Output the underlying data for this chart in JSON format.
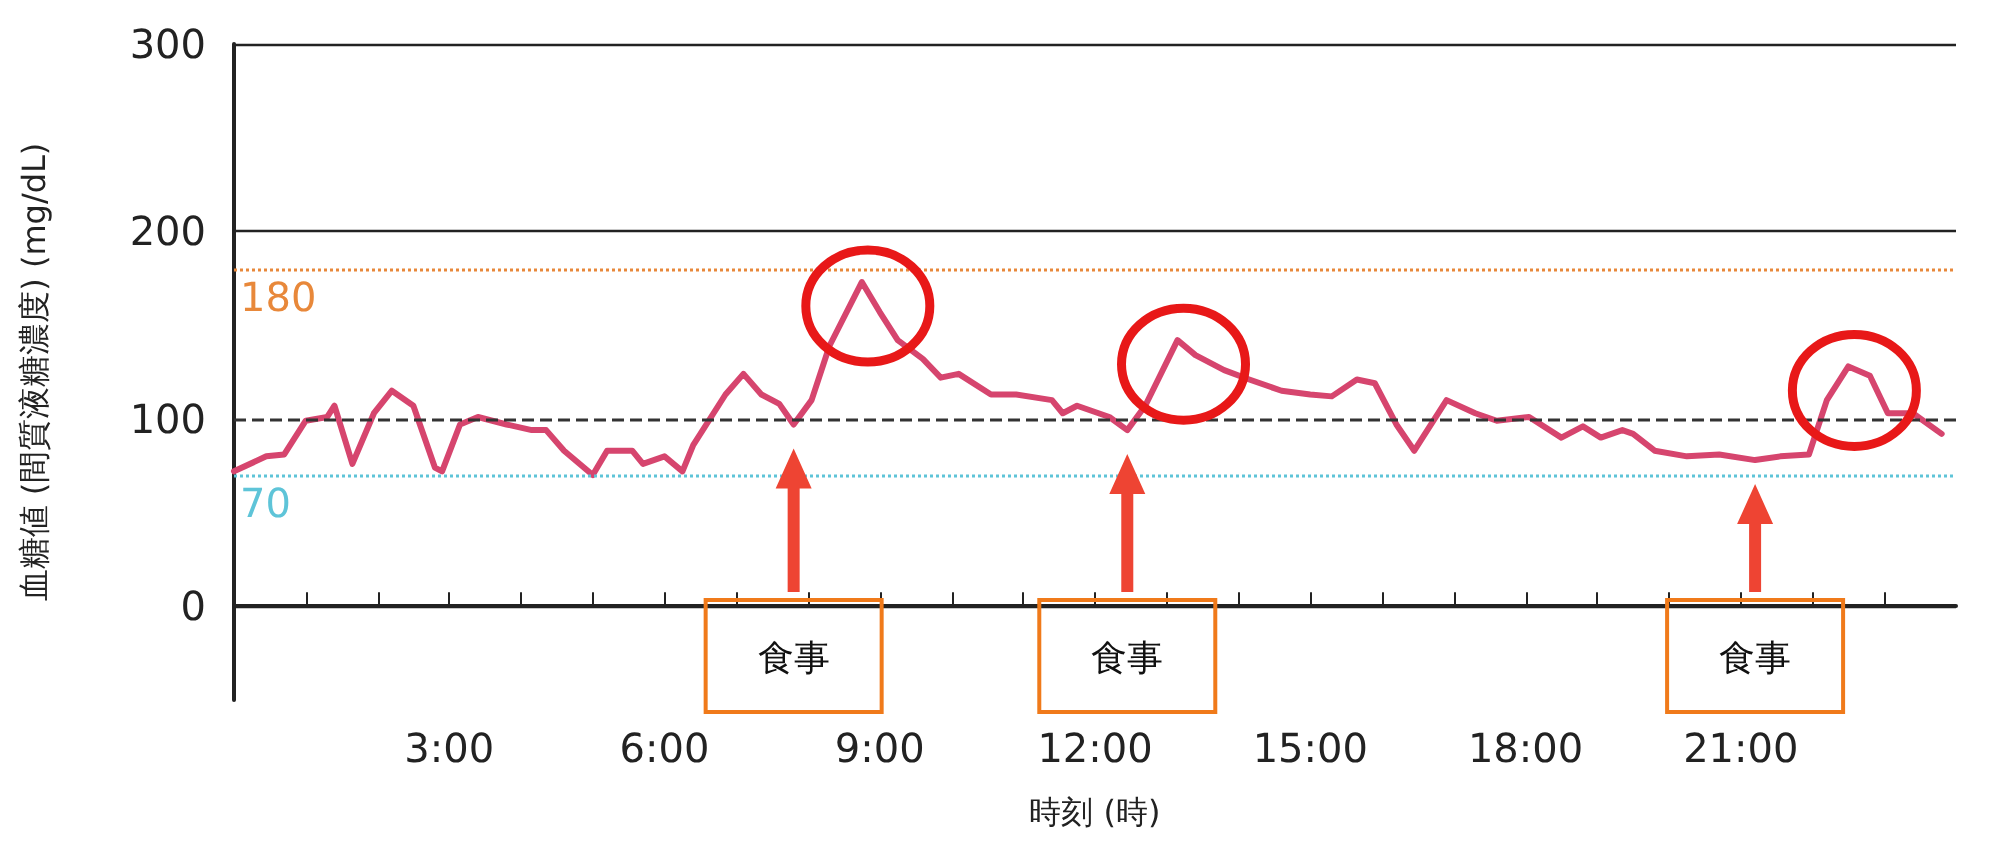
{
  "chart_data": {
    "type": "line",
    "xlabel": "時刻 (時)",
    "ylabel": "血糖値 (間質液糖濃度) (mg/dL)",
    "xlim": [
      0,
      24
    ],
    "xticks": [
      {
        "value": 1,
        "label": null
      },
      {
        "value": 2,
        "label": null
      },
      {
        "value": 3,
        "label": "3:00"
      },
      {
        "value": 4,
        "label": null
      },
      {
        "value": 5,
        "label": null
      },
      {
        "value": 6,
        "label": "6:00"
      },
      {
        "value": 7,
        "label": null
      },
      {
        "value": 8,
        "label": null
      },
      {
        "value": 9,
        "label": "9:00"
      },
      {
        "value": 10,
        "label": null
      },
      {
        "value": 11,
        "label": null
      },
      {
        "value": 12,
        "label": "12:00"
      },
      {
        "value": 13,
        "label": null
      },
      {
        "value": 14,
        "label": null
      },
      {
        "value": 15,
        "label": "15:00"
      },
      {
        "value": 16,
        "label": null
      },
      {
        "value": 17,
        "label": null
      },
      {
        "value": 18,
        "label": "18:00"
      },
      {
        "value": 19,
        "label": null
      },
      {
        "value": 20,
        "label": null
      },
      {
        "value": 21,
        "label": "21:00"
      },
      {
        "value": 22,
        "label": null
      },
      {
        "value": 23,
        "label": null
      }
    ],
    "ylim": [
      -50,
      300
    ],
    "yticks": [
      0,
      100,
      200,
      300
    ],
    "grid": "y",
    "marker": "none",
    "line_style": "solid",
    "series": [
      {
        "color": "#d6456e",
        "x": [
          0,
          0.45,
          0.7,
          1.0,
          1.3,
          1.4,
          1.65,
          1.95,
          2.2,
          2.5,
          2.8,
          2.9,
          3.15,
          3.4,
          3.8,
          4.15,
          4.35,
          4.6,
          5.0,
          5.2,
          5.55,
          5.7,
          6.0,
          6.25,
          6.4,
          6.85,
          7.1,
          7.35,
          7.6,
          7.8,
          8.05,
          8.3,
          8.75,
          9.0,
          9.25,
          9.6,
          9.85,
          10.1,
          10.55,
          10.9,
          11.4,
          11.55,
          11.75,
          12.2,
          12.45,
          12.7,
          13.15,
          13.4,
          13.8,
          14.15,
          14.6,
          15.0,
          15.3,
          15.65,
          15.9,
          16.2,
          16.45,
          16.9,
          17.3,
          17.6,
          18.05,
          18.5,
          18.8,
          19.05,
          19.35,
          19.5,
          19.8,
          20.25,
          20.7,
          21.2,
          21.55,
          21.95,
          22.2,
          22.5,
          22.8,
          23.05,
          23.4,
          23.8
        ],
        "values": [
          72,
          80,
          81,
          99,
          101,
          107,
          76,
          103,
          115,
          107,
          74,
          72,
          97,
          101,
          97,
          94,
          94,
          83,
          70,
          83,
          83,
          76,
          80,
          72,
          86,
          113,
          124,
          113,
          108,
          97,
          110,
          139,
          173,
          157,
          142,
          132,
          122,
          124,
          113,
          113,
          110,
          103,
          107,
          101,
          94,
          107,
          142,
          134,
          126,
          121,
          115,
          113,
          112,
          121,
          119,
          97,
          83,
          110,
          103,
          99,
          101,
          90,
          96,
          90,
          94,
          92,
          83,
          80,
          81,
          78,
          80,
          81,
          110,
          128,
          123,
          103,
          103,
          92
        ]
      }
    ],
    "ref_lines": [
      {
        "axis": "y",
        "value": 180,
        "label": "180",
        "color": "#e8883a",
        "line_style": "dotted"
      },
      {
        "axis": "y",
        "value": 100,
        "label": null,
        "color": "#333333",
        "line_style": "dashed"
      },
      {
        "axis": "y",
        "value": 70,
        "label": "70",
        "color": "#5ec4d8",
        "line_style": "dotted"
      }
    ],
    "annotations": [
      "食事",
      "食事",
      "食事"
    ]
  }
}
